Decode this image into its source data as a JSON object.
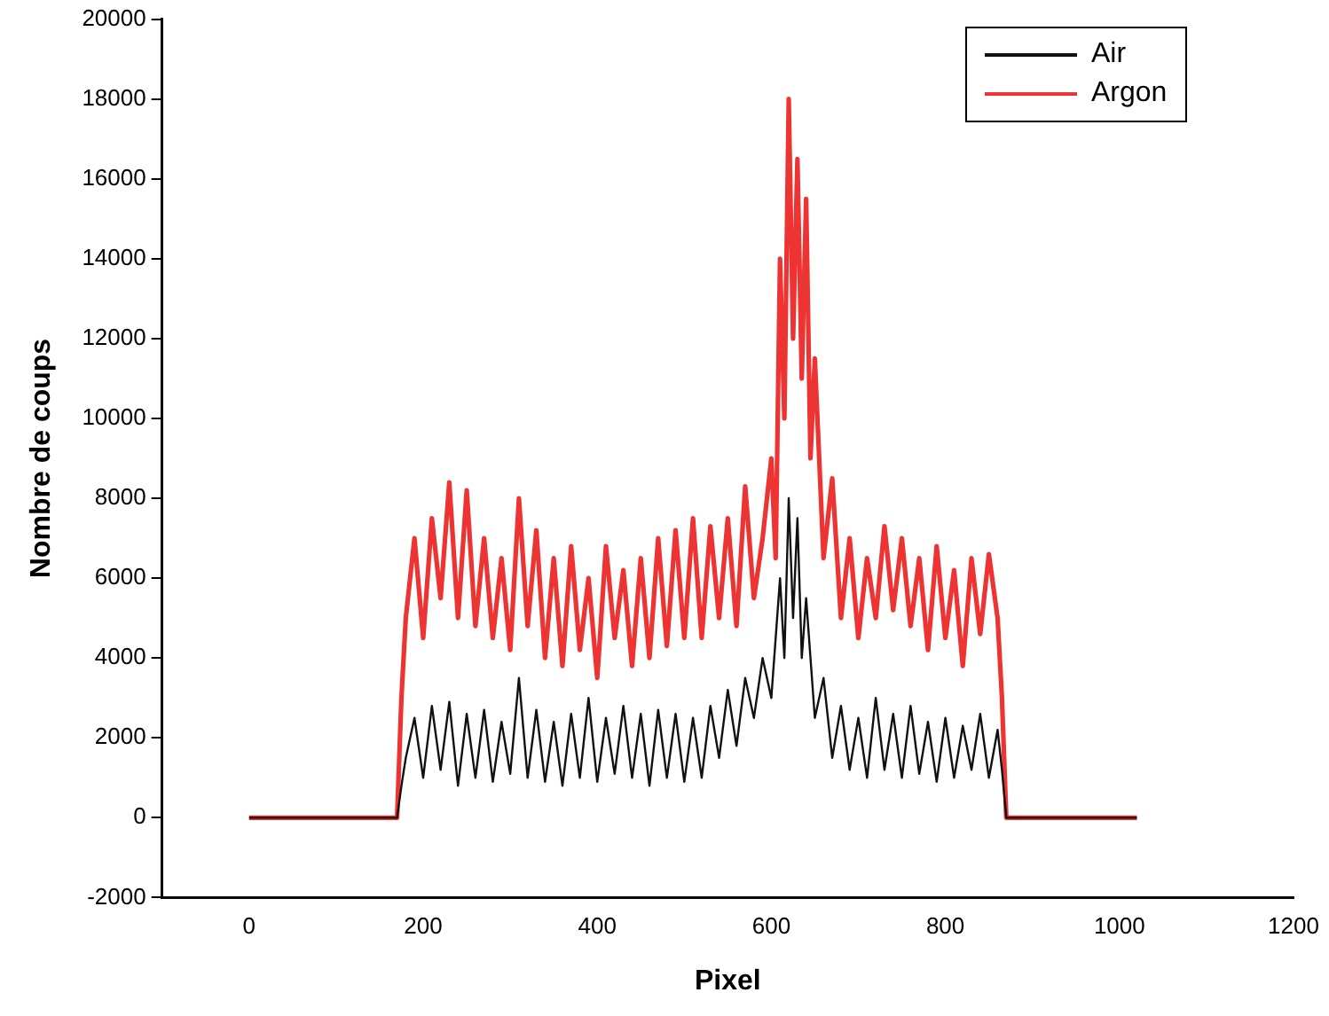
{
  "chart_data": {
    "type": "line",
    "xlabel": "Pixel",
    "ylabel": "Nombre de coups",
    "xlim": [
      -100,
      1200
    ],
    "xticks": [
      0,
      200,
      400,
      600,
      800,
      1000,
      1200
    ],
    "ylim": [
      -2000,
      20000
    ],
    "yticks": [
      -2000,
      0,
      2000,
      4000,
      6000,
      8000,
      10000,
      12000,
      14000,
      16000,
      18000,
      20000
    ],
    "grid": false,
    "legend": "top right",
    "marker": "none",
    "line_style": "solid",
    "series": [
      {
        "name": "Argon",
        "color": "#ee3333",
        "x": [
          0,
          100,
          170,
          175,
          180,
          190,
          200,
          210,
          220,
          230,
          240,
          250,
          260,
          270,
          280,
          290,
          300,
          310,
          320,
          330,
          340,
          350,
          360,
          370,
          380,
          390,
          400,
          410,
          420,
          430,
          440,
          450,
          460,
          470,
          480,
          490,
          500,
          510,
          520,
          530,
          540,
          550,
          560,
          570,
          580,
          590,
          600,
          605,
          610,
          615,
          620,
          625,
          630,
          635,
          640,
          645,
          650,
          660,
          670,
          680,
          690,
          700,
          710,
          720,
          730,
          740,
          750,
          760,
          770,
          780,
          790,
          800,
          810,
          820,
          830,
          840,
          850,
          860,
          865,
          870,
          900,
          1000,
          1020
        ],
        "values": [
          0,
          0,
          0,
          3000,
          5000,
          7000,
          4500,
          7500,
          5500,
          8400,
          5000,
          8200,
          4800,
          7000,
          4500,
          6500,
          4200,
          8000,
          4800,
          7200,
          4000,
          6500,
          3800,
          6800,
          4200,
          6000,
          3500,
          6800,
          4500,
          6200,
          3800,
          6500,
          4000,
          7000,
          4300,
          7200,
          4500,
          7500,
          4500,
          7300,
          5000,
          7500,
          4800,
          8300,
          5500,
          7000,
          9000,
          6500,
          14000,
          10000,
          18000,
          12000,
          16500,
          11000,
          15500,
          9000,
          11500,
          6500,
          8500,
          5000,
          7000,
          4500,
          6500,
          5000,
          7300,
          5200,
          7000,
          4800,
          6500,
          4200,
          6800,
          4500,
          6200,
          3800,
          6500,
          4600,
          6600,
          5000,
          3000,
          0,
          0,
          0,
          0
        ]
      },
      {
        "name": "Air",
        "color": "#111111",
        "x": [
          0,
          100,
          170,
          175,
          180,
          190,
          200,
          210,
          220,
          230,
          240,
          250,
          260,
          270,
          280,
          290,
          300,
          310,
          320,
          330,
          340,
          350,
          360,
          370,
          380,
          390,
          400,
          410,
          420,
          430,
          440,
          450,
          460,
          470,
          480,
          490,
          500,
          510,
          520,
          530,
          540,
          550,
          560,
          570,
          580,
          590,
          600,
          610,
          615,
          620,
          625,
          630,
          635,
          640,
          650,
          660,
          670,
          680,
          690,
          700,
          710,
          720,
          730,
          740,
          750,
          760,
          770,
          780,
          790,
          800,
          810,
          820,
          830,
          840,
          850,
          860,
          865,
          870,
          900,
          1000,
          1020
        ],
        "values": [
          0,
          0,
          0,
          800,
          1500,
          2500,
          1000,
          2800,
          1200,
          2900,
          800,
          2600,
          1000,
          2700,
          900,
          2400,
          1100,
          3500,
          1000,
          2700,
          900,
          2400,
          800,
          2600,
          1000,
          3000,
          900,
          2500,
          1100,
          2800,
          1000,
          2600,
          800,
          2700,
          1000,
          2600,
          900,
          2500,
          1000,
          2800,
          1500,
          3200,
          1800,
          3500,
          2500,
          4000,
          3000,
          6000,
          4000,
          8000,
          5000,
          7500,
          4000,
          5500,
          2500,
          3500,
          1500,
          2800,
          1200,
          2500,
          1000,
          3000,
          1200,
          2600,
          1000,
          2800,
          1100,
          2400,
          900,
          2500,
          1000,
          2300,
          1200,
          2600,
          1000,
          2200,
          1200,
          0,
          0,
          0,
          0
        ]
      }
    ]
  }
}
